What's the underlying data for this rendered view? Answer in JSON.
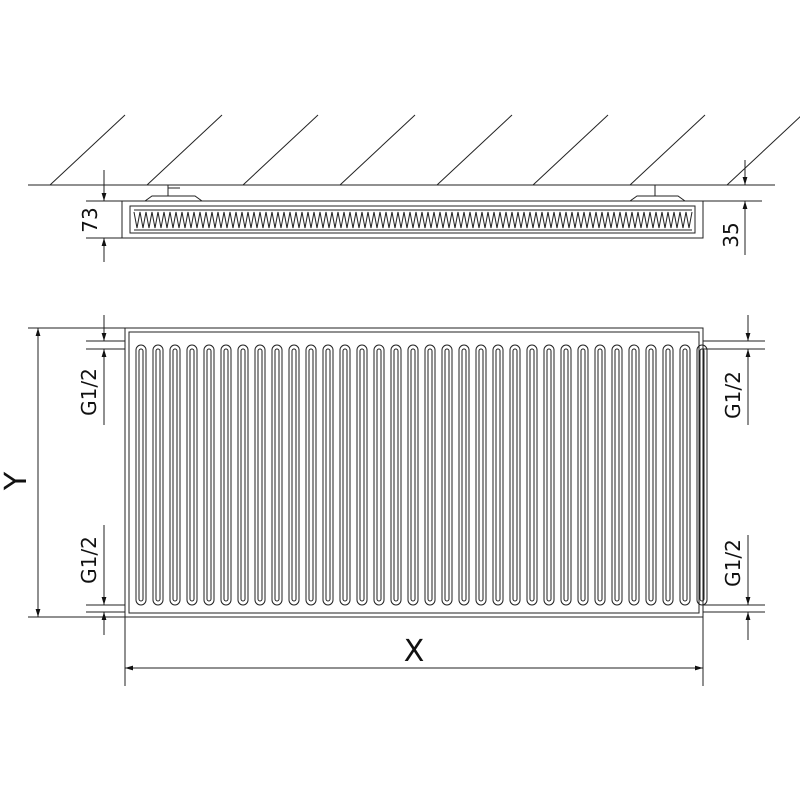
{
  "dimensions": {
    "depth_total": "73",
    "wall_gap": "35",
    "height": "Y",
    "width": "X",
    "connection_top_left": "G1/2",
    "connection_bottom_left": "G1/2",
    "connection_top_right": "G1/2",
    "connection_bottom_right": "G1/2"
  },
  "colors": {
    "line": "#222222",
    "background": "#ffffff"
  }
}
